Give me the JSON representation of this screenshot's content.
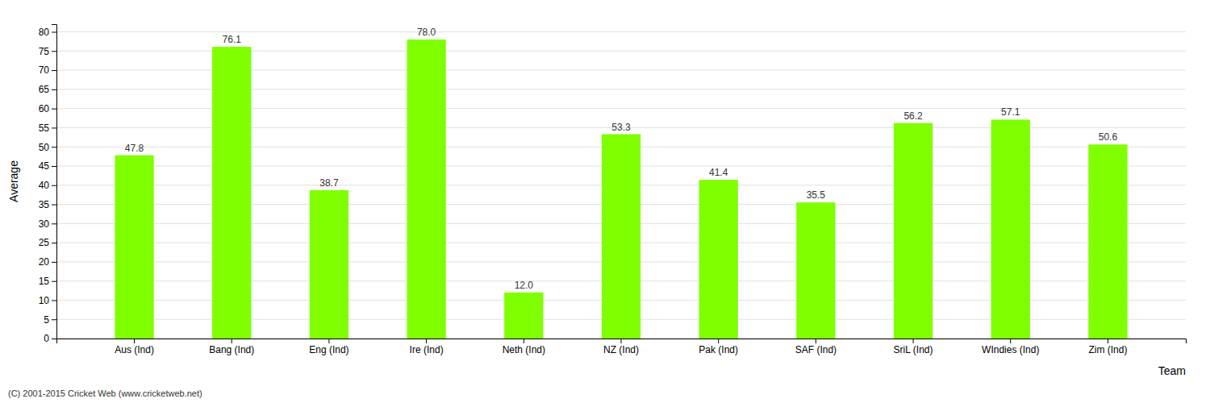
{
  "chart_data": {
    "type": "bar",
    "categories": [
      "Aus (Ind)",
      "Bang (Ind)",
      "Eng (Ind)",
      "Ire (Ind)",
      "Neth (Ind)",
      "NZ (Ind)",
      "Pak (Ind)",
      "SAF (Ind)",
      "SriL (Ind)",
      "WIndies (Ind)",
      "Zim (Ind)"
    ],
    "values": [
      47.8,
      76.1,
      38.7,
      78.0,
      12.0,
      53.3,
      41.4,
      35.5,
      56.2,
      57.1,
      50.6
    ],
    "value_labels": [
      "47.8",
      "76.1",
      "38.7",
      "78.0",
      "12.0",
      "53.3",
      "41.4",
      "35.5",
      "56.2",
      "57.1",
      "50.6"
    ],
    "data_labels": true,
    "color": "#7fff00",
    "xlabel": "Team",
    "ylabel": "Average",
    "ylim": [
      0,
      82
    ],
    "yticks": [
      0,
      5,
      10,
      15,
      20,
      25,
      30,
      35,
      40,
      45,
      50,
      55,
      60,
      65,
      70,
      75,
      80
    ],
    "grid": true,
    "annotations": [
      "(C) 2001-2015 Cricket Web (www.cricketweb.net)"
    ]
  }
}
